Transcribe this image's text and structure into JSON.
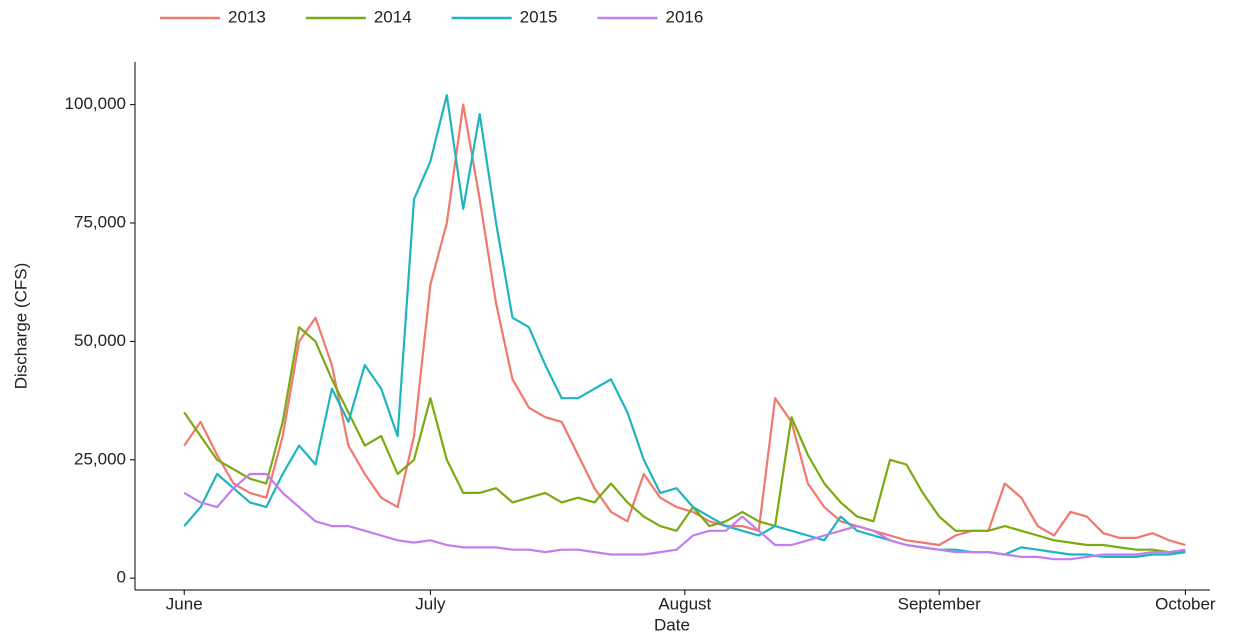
{
  "chart_data": {
    "type": "line",
    "x_label": "Date",
    "y_label": "Discharge (CFS)",
    "legend_position": "top-left",
    "grid": false,
    "xlim": [
      -6,
      125
    ],
    "ylim": [
      -2500,
      109000
    ],
    "xticks": [
      {
        "value": 0,
        "label": "June"
      },
      {
        "value": 30,
        "label": "July"
      },
      {
        "value": 61,
        "label": "August"
      },
      {
        "value": 92,
        "label": "September"
      },
      {
        "value": 122,
        "label": "October"
      }
    ],
    "yticks": [
      0,
      {
        "value": 25000,
        "label": "25,000"
      },
      {
        "value": 50000,
        "label": "50,000"
      },
      {
        "value": 75000,
        "label": "75,000"
      },
      {
        "value": 100000,
        "label": "100,000"
      }
    ],
    "x": [
      0,
      2,
      4,
      6,
      8,
      10,
      12,
      14,
      16,
      18,
      20,
      22,
      24,
      26,
      28,
      30,
      32,
      34,
      36,
      38,
      40,
      42,
      44,
      46,
      48,
      50,
      52,
      54,
      56,
      58,
      60,
      62,
      64,
      66,
      68,
      70,
      72,
      74,
      76,
      78,
      80,
      82,
      84,
      86,
      88,
      90,
      92,
      94,
      96,
      98,
      100,
      102,
      104,
      106,
      108,
      110,
      112,
      114,
      116,
      118,
      120,
      122
    ],
    "series": [
      {
        "name": "2013",
        "color": "#f0786e",
        "values": [
          28000,
          33000,
          26000,
          20000,
          18000,
          17000,
          30000,
          50000,
          55000,
          45000,
          28000,
          22000,
          17000,
          15000,
          30000,
          62000,
          75000,
          100000,
          80000,
          58000,
          42000,
          36000,
          34000,
          33000,
          26000,
          19000,
          14000,
          12000,
          22000,
          17000,
          15000,
          14000,
          12000,
          11000,
          11000,
          10000,
          38000,
          33000,
          20000,
          15000,
          12000,
          11000,
          10000,
          9000,
          8000,
          7500,
          7000,
          9000,
          10000,
          10000,
          20000,
          17000,
          11000,
          9000,
          14000,
          13000,
          9500,
          8500,
          8500,
          9500,
          8000,
          7000
        ]
      },
      {
        "name": "2014",
        "color": "#7caa10",
        "values": [
          35000,
          30000,
          25000,
          23000,
          21000,
          20000,
          33000,
          53000,
          50000,
          42000,
          35000,
          28000,
          30000,
          22000,
          25000,
          38000,
          25000,
          18000,
          18000,
          19000,
          16000,
          17000,
          18000,
          16000,
          17000,
          16000,
          20000,
          16000,
          13000,
          11000,
          10000,
          15000,
          11000,
          12000,
          14000,
          12000,
          11000,
          34000,
          26000,
          20000,
          16000,
          13000,
          12000,
          25000,
          24000,
          18000,
          13000,
          10000,
          10000,
          10000,
          11000,
          10000,
          9000,
          8000,
          7500,
          7000,
          7000,
          6500,
          6000,
          6000,
          5500,
          5500
        ]
      },
      {
        "name": "2015",
        "color": "#1fb5be",
        "values": [
          11000,
          15000,
          22000,
          19000,
          16000,
          15000,
          22000,
          28000,
          24000,
          40000,
          33000,
          45000,
          40000,
          30000,
          80000,
          88000,
          102000,
          78000,
          98000,
          75000,
          55000,
          53000,
          45000,
          38000,
          38000,
          40000,
          42000,
          35000,
          25000,
          18000,
          19000,
          15000,
          13000,
          11000,
          10000,
          9000,
          11000,
          10000,
          9000,
          8000,
          13000,
          10000,
          9000,
          8000,
          7000,
          6500,
          6000,
          6000,
          5500,
          5500,
          5000,
          6500,
          6000,
          5500,
          5000,
          5000,
          4500,
          4500,
          4500,
          5000,
          5000,
          5500
        ]
      },
      {
        "name": "2016",
        "color": "#c27ef0",
        "values": [
          18000,
          16000,
          15000,
          19000,
          22000,
          22000,
          18000,
          15000,
          12000,
          11000,
          11000,
          10000,
          9000,
          8000,
          7500,
          8000,
          7000,
          6500,
          6500,
          6500,
          6000,
          6000,
          5500,
          6000,
          6000,
          5500,
          5000,
          5000,
          5000,
          5500,
          6000,
          9000,
          10000,
          10000,
          13000,
          10000,
          7000,
          7000,
          8000,
          9000,
          10000,
          11000,
          10000,
          8000,
          7000,
          6500,
          6000,
          5500,
          5500,
          5500,
          5000,
          4500,
          4500,
          4000,
          4000,
          4500,
          5000,
          5000,
          5000,
          5500,
          5500,
          6000
        ]
      }
    ]
  }
}
